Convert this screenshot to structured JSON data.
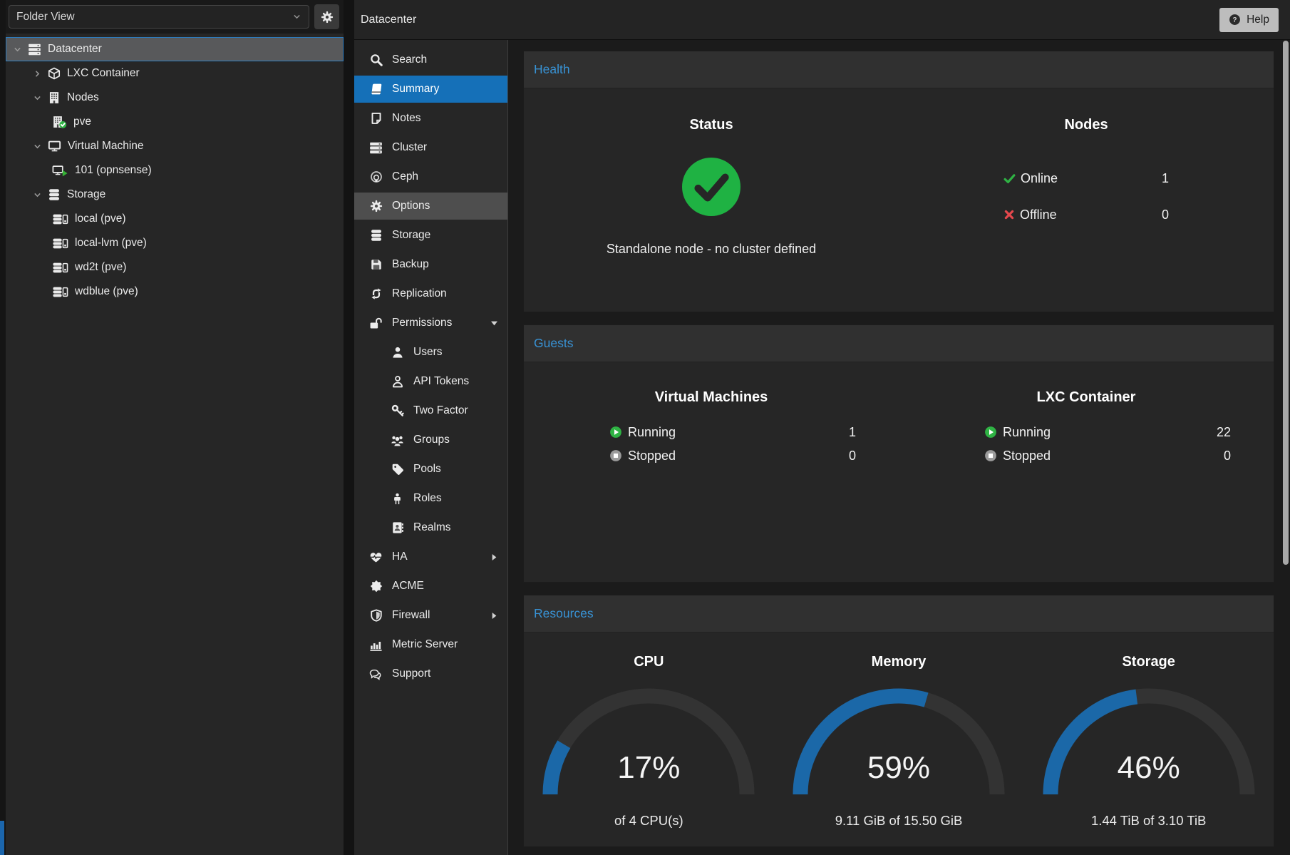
{
  "header": {
    "title": "Datacenter",
    "help_label": "Help"
  },
  "sidebar": {
    "view_selector": {
      "value": "Folder View"
    },
    "tree": [
      {
        "label": "Datacenter",
        "icon": "server-stack-icon",
        "level": 0,
        "expander": "down",
        "selected": true
      },
      {
        "label": "LXC Container",
        "icon": "cube-icon",
        "level": 1,
        "expander": "right",
        "selected": false
      },
      {
        "label": "Nodes",
        "icon": "building-icon",
        "level": 1,
        "expander": "down",
        "selected": false
      },
      {
        "label": "pve",
        "icon": "building-check-icon",
        "level": 2,
        "expander": "none",
        "selected": false
      },
      {
        "label": "Virtual Machine",
        "icon": "monitor-icon",
        "level": 1,
        "expander": "down",
        "selected": false
      },
      {
        "label": "101 (opnsense)",
        "icon": "monitor-play-icon",
        "level": 2,
        "expander": "none",
        "selected": false
      },
      {
        "label": "Storage",
        "icon": "database-icon",
        "level": 1,
        "expander": "down",
        "selected": false
      },
      {
        "label": "local (pve)",
        "icon": "database-drive-icon",
        "level": 2,
        "expander": "none",
        "selected": false
      },
      {
        "label": "local-lvm (pve)",
        "icon": "database-drive-icon",
        "level": 2,
        "expander": "none",
        "selected": false
      },
      {
        "label": "wd2t (pve)",
        "icon": "database-drive-icon",
        "level": 2,
        "expander": "none",
        "selected": false
      },
      {
        "label": "wdblue (pve)",
        "icon": "database-drive-icon",
        "level": 2,
        "expander": "none",
        "selected": false
      }
    ]
  },
  "menu": {
    "items": [
      {
        "label": "Search",
        "icon": "search-icon",
        "state": "normal",
        "indent": false,
        "arrow": "none"
      },
      {
        "label": "Summary",
        "icon": "book-icon",
        "state": "selected",
        "indent": false,
        "arrow": "none"
      },
      {
        "label": "Notes",
        "icon": "note-icon",
        "state": "normal",
        "indent": false,
        "arrow": "none"
      },
      {
        "label": "Cluster",
        "icon": "server-stack-icon",
        "state": "normal",
        "indent": false,
        "arrow": "none"
      },
      {
        "label": "Ceph",
        "icon": "ceph-icon",
        "state": "normal",
        "indent": false,
        "arrow": "none"
      },
      {
        "label": "Options",
        "icon": "gear-icon",
        "state": "hover",
        "indent": false,
        "arrow": "none"
      },
      {
        "label": "Storage",
        "icon": "database-icon",
        "state": "normal",
        "indent": false,
        "arrow": "none"
      },
      {
        "label": "Backup",
        "icon": "floppy-icon",
        "state": "normal",
        "indent": false,
        "arrow": "none"
      },
      {
        "label": "Replication",
        "icon": "sync-icon",
        "state": "normal",
        "indent": false,
        "arrow": "none"
      },
      {
        "label": "Permissions",
        "icon": "unlock-icon",
        "state": "normal",
        "indent": false,
        "arrow": "down"
      },
      {
        "label": "Users",
        "icon": "user-icon",
        "state": "normal",
        "indent": true,
        "arrow": "none"
      },
      {
        "label": "API Tokens",
        "icon": "user-outline-icon",
        "state": "normal",
        "indent": true,
        "arrow": "none"
      },
      {
        "label": "Two Factor",
        "icon": "key-icon",
        "state": "normal",
        "indent": true,
        "arrow": "none"
      },
      {
        "label": "Groups",
        "icon": "users-icon",
        "state": "normal",
        "indent": true,
        "arrow": "none"
      },
      {
        "label": "Pools",
        "icon": "tag-icon",
        "state": "normal",
        "indent": true,
        "arrow": "none"
      },
      {
        "label": "Roles",
        "icon": "person-icon",
        "state": "normal",
        "indent": true,
        "arrow": "none"
      },
      {
        "label": "Realms",
        "icon": "address-book-icon",
        "state": "normal",
        "indent": true,
        "arrow": "none"
      },
      {
        "label": "HA",
        "icon": "heartbeat-icon",
        "state": "normal",
        "indent": false,
        "arrow": "right"
      },
      {
        "label": "ACME",
        "icon": "starburst-icon",
        "state": "normal",
        "indent": false,
        "arrow": "none"
      },
      {
        "label": "Firewall",
        "icon": "shield-icon",
        "state": "normal",
        "indent": false,
        "arrow": "right"
      },
      {
        "label": "Metric Server",
        "icon": "bar-chart-icon",
        "state": "normal",
        "indent": false,
        "arrow": "none"
      },
      {
        "label": "Support",
        "icon": "comments-icon",
        "state": "normal",
        "indent": false,
        "arrow": "none"
      }
    ]
  },
  "health": {
    "title": "Health",
    "status": {
      "heading": "Status",
      "message": "Standalone node - no cluster defined"
    },
    "nodes": {
      "heading": "Nodes",
      "rows": [
        {
          "label": "Online",
          "value": "1",
          "icon": "check-icon"
        },
        {
          "label": "Offline",
          "value": "0",
          "icon": "cross-icon"
        }
      ]
    }
  },
  "guests": {
    "title": "Guests",
    "groups": [
      {
        "heading": "Virtual Machines",
        "rows": [
          {
            "label": "Running",
            "value": "1",
            "icon": "play-circle-icon"
          },
          {
            "label": "Stopped",
            "value": "0",
            "icon": "stop-circle-icon"
          }
        ]
      },
      {
        "heading": "LXC Container",
        "rows": [
          {
            "label": "Running",
            "value": "22",
            "icon": "play-circle-icon"
          },
          {
            "label": "Stopped",
            "value": "0",
            "icon": "stop-circle-icon"
          }
        ]
      }
    ]
  },
  "resources": {
    "title": "Resources",
    "gauges": [
      {
        "heading": "CPU",
        "percent": 17,
        "percent_label": "17%",
        "detail": "of 4 CPU(s)"
      },
      {
        "heading": "Memory",
        "percent": 59,
        "percent_label": "59%",
        "detail": "9.11 GiB of 15.50 GiB"
      },
      {
        "heading": "Storage",
        "percent": 46,
        "percent_label": "46%",
        "detail": "1.44 TiB of 3.10 TiB"
      }
    ]
  },
  "colors": {
    "accent_blue": "#1570b8",
    "title_blue": "#3892d4",
    "gauge_blue": "#1b68a8",
    "gauge_track": "#333333",
    "ok_green": "#1fb243",
    "run_green": "#2fb344",
    "err_red": "#e5484d",
    "stop_grey": "#9b9b9b"
  }
}
